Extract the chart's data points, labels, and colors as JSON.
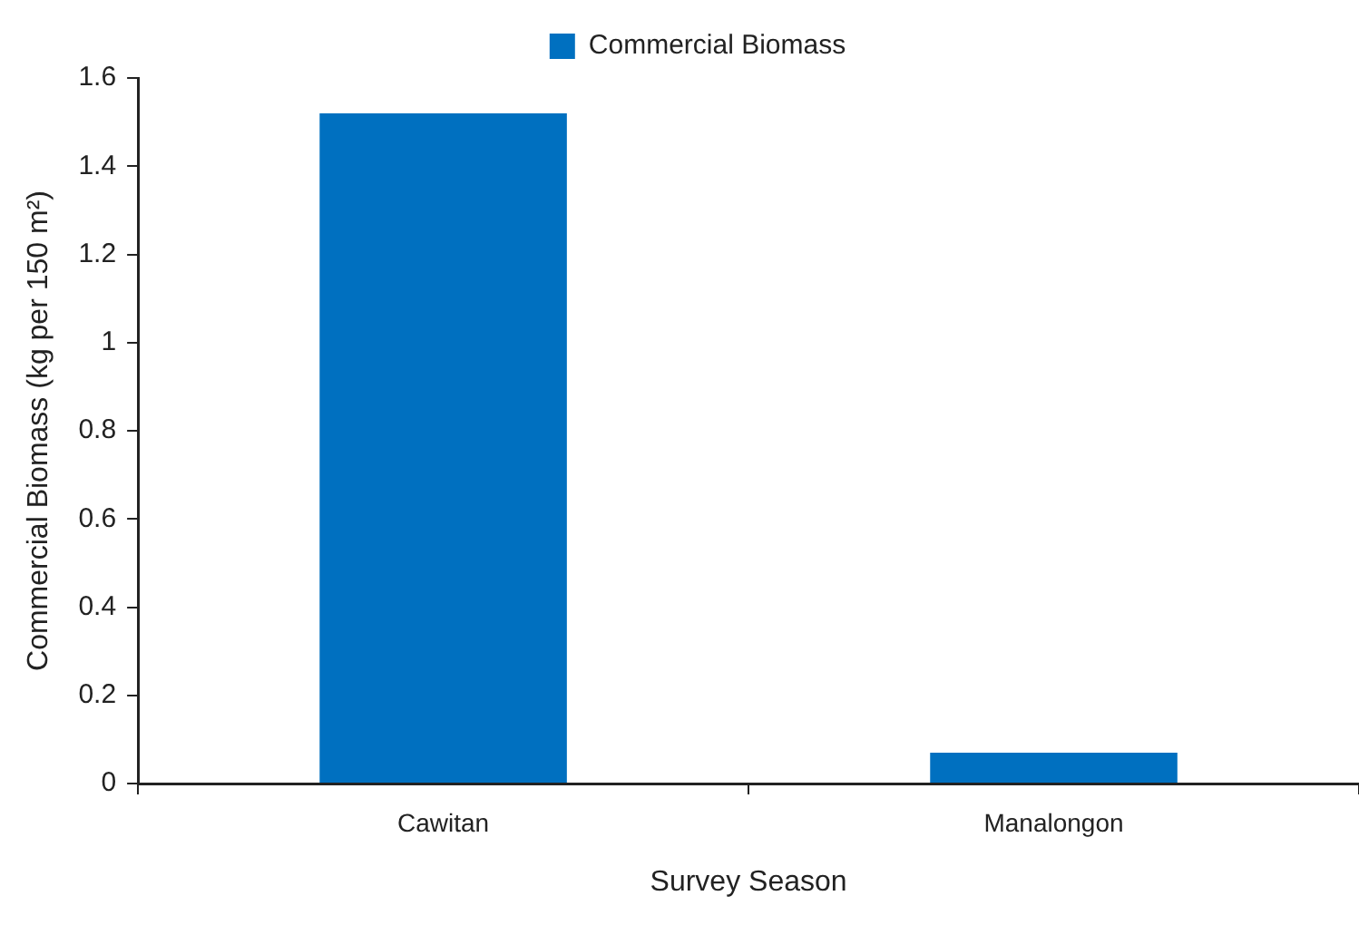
{
  "chart_data": {
    "type": "bar",
    "categories": [
      "Cawitan",
      "Manalongon"
    ],
    "series": [
      {
        "name": "Commercial Biomass",
        "color": "#0070c0",
        "values": [
          1.52,
          0.07
        ]
      }
    ],
    "xlabel": "Survey Season",
    "ylabel": "Commercial Biomass (kg per 150 m²)",
    "ylim": [
      0,
      1.6
    ],
    "yticks": [
      0,
      0.2,
      0.4,
      0.6,
      0.8,
      1,
      1.2,
      1.4,
      1.6
    ],
    "grid": false,
    "legend": "top"
  }
}
